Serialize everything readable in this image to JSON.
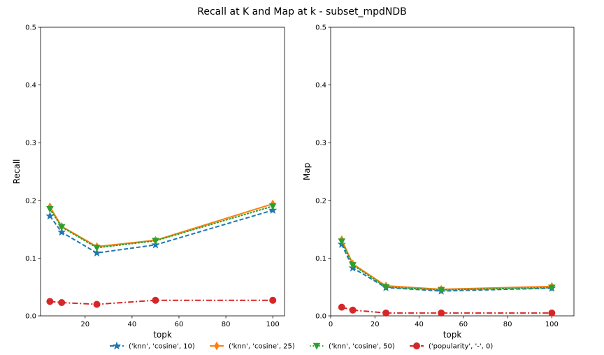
{
  "chart_data": {
    "type": "line",
    "title": "Recall at K and Map at k - subset_mpdNDB",
    "legend_position": "bottom-center",
    "grid": false,
    "series_styles": [
      {
        "color": "#1f77b4",
        "dash": "dashed",
        "marker": "star"
      },
      {
        "color": "#ff7f0e",
        "dash": "solid",
        "marker": "thin-diamond"
      },
      {
        "color": "#2ca02c",
        "dash": "dotted",
        "marker": "triangle-down"
      },
      {
        "color": "#d62728",
        "dash": "dash-dot",
        "marker": "circle"
      }
    ],
    "legend": [
      "('knn', 'cosine', 10)",
      "('knn', 'cosine', 25)",
      "('knn', 'cosine', 50)",
      "('popularity', '-', 0)"
    ],
    "panels": [
      {
        "xlabel": "topk",
        "ylabel": "Recall",
        "xlim": [
          1,
          105
        ],
        "ylim": [
          0,
          0.5
        ],
        "xticks": [
          "20",
          "40",
          "60",
          "80",
          "100"
        ],
        "yticks": [
          "0.0",
          "0.1",
          "0.2",
          "0.3",
          "0.4",
          "0.5"
        ],
        "x": [
          5,
          10,
          25,
          50,
          100
        ],
        "series": [
          {
            "name": "('knn', 'cosine', 10)",
            "values": [
              0.173,
              0.145,
              0.109,
              0.123,
              0.183
            ]
          },
          {
            "name": "('knn', 'cosine', 25)",
            "values": [
              0.189,
              0.155,
              0.12,
              0.131,
              0.194
            ]
          },
          {
            "name": "('knn', 'cosine', 50)",
            "values": [
              0.185,
              0.154,
              0.118,
              0.13,
              0.19
            ]
          },
          {
            "name": "('popularity', '-', 0)",
            "values": [
              0.025,
              0.023,
              0.02,
              0.027,
              0.027
            ]
          }
        ]
      },
      {
        "xlabel": "topk",
        "ylabel": "Map",
        "xlim": [
          0,
          110
        ],
        "ylim": [
          0,
          0.5
        ],
        "xticks": [
          "0",
          "20",
          "40",
          "60",
          "80",
          "100"
        ],
        "yticks": [
          "0.0",
          "0.1",
          "0.2",
          "0.3",
          "0.4",
          "0.5"
        ],
        "x": [
          5,
          10,
          25,
          50,
          100
        ],
        "series": [
          {
            "name": "('knn', 'cosine', 10)",
            "values": [
              0.124,
              0.083,
              0.049,
              0.043,
              0.048
            ]
          },
          {
            "name": "('knn', 'cosine', 25)",
            "values": [
              0.132,
              0.09,
              0.052,
              0.046,
              0.051
            ]
          },
          {
            "name": "('knn', 'cosine', 50)",
            "values": [
              0.129,
              0.088,
              0.05,
              0.045,
              0.049
            ]
          },
          {
            "name": "('popularity', '-', 0)",
            "values": [
              0.015,
              0.01,
              0.005,
              0.005,
              0.005
            ]
          }
        ]
      }
    ]
  }
}
